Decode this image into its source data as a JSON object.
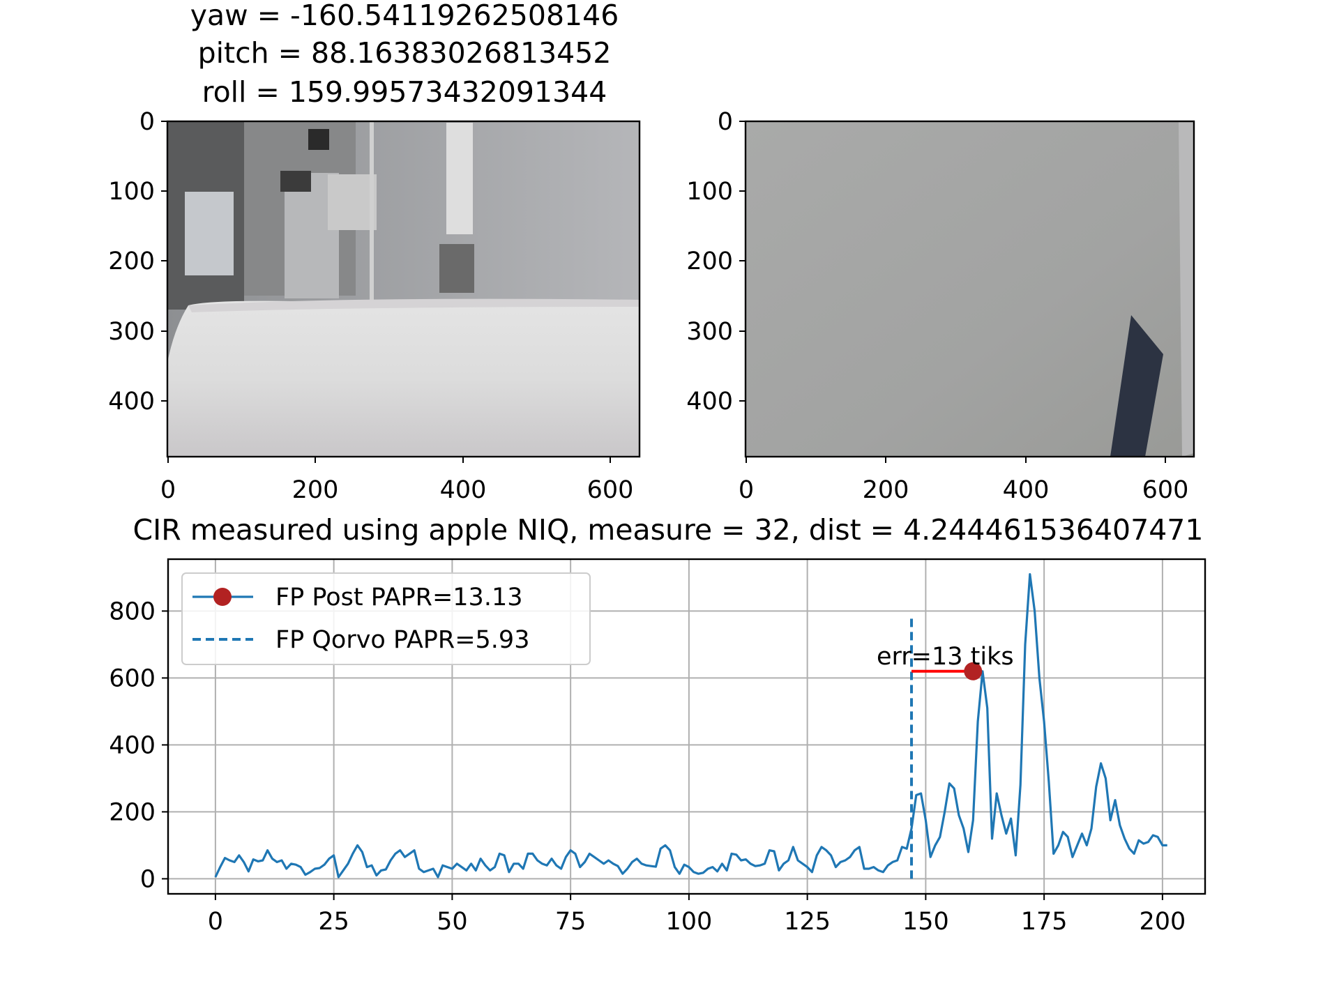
{
  "titles": {
    "yaw": "yaw = -160.54119262508146",
    "pitch": "pitch = 88.16383026813452",
    "roll": "roll = 159.99573432091344",
    "cir": "CIR measured using apple NIQ, measure = 32, dist = 4.244461536407471"
  },
  "images": [
    {
      "type": "image",
      "xticks": [
        "0",
        "200",
        "400",
        "600"
      ],
      "yticks": [
        "0",
        "100",
        "200",
        "300",
        "400"
      ],
      "xlim": [
        0,
        640
      ],
      "ylim": [
        480,
        0
      ]
    },
    {
      "type": "image",
      "xticks": [
        "0",
        "200",
        "400",
        "600"
      ],
      "yticks": [
        "0",
        "100",
        "200",
        "300",
        "400"
      ],
      "xlim": [
        0,
        640
      ],
      "ylim": [
        480,
        0
      ]
    }
  ],
  "chart_data": {
    "type": "line",
    "xlim": [
      -10,
      209
    ],
    "ylim": [
      -45,
      955
    ],
    "xticks": [
      0,
      25,
      50,
      75,
      100,
      125,
      150,
      175,
      200
    ],
    "yticks": [
      0,
      200,
      400,
      600,
      800
    ],
    "grid": true,
    "legend_position": "top-left",
    "series": [
      {
        "name": "FP Post PAPR=13.13",
        "color": "#1f77b4",
        "marker_color": "#b22222",
        "marker": {
          "x": 160,
          "y": 620
        },
        "values": [
          5,
          35,
          62,
          55,
          50,
          70,
          50,
          22,
          58,
          52,
          55,
          85,
          60,
          50,
          55,
          30,
          45,
          42,
          35,
          12,
          20,
          30,
          32,
          42,
          60,
          70,
          5,
          25,
          45,
          75,
          100,
          80,
          35,
          40,
          10,
          25,
          28,
          55,
          75,
          85,
          65,
          75,
          85,
          30,
          20,
          25,
          30,
          5,
          40,
          35,
          30,
          45,
          35,
          25,
          45,
          25,
          60,
          40,
          25,
          35,
          75,
          70,
          20,
          45,
          45,
          30,
          75,
          75,
          55,
          45,
          40,
          60,
          40,
          30,
          65,
          85,
          75,
          35,
          50,
          75,
          65,
          55,
          45,
          55,
          45,
          38,
          15,
          30,
          50,
          60,
          45,
          40,
          38,
          36,
          90,
          100,
          85,
          35,
          15,
          42,
          35,
          20,
          15,
          18,
          30,
          35,
          22,
          45,
          25,
          75,
          72,
          55,
          58,
          45,
          38,
          40,
          45,
          85,
          82,
          25,
          45,
          55,
          95,
          55,
          45,
          35,
          20,
          70,
          95,
          85,
          70,
          35,
          50,
          55,
          65,
          85,
          95,
          30,
          30,
          35,
          25,
          20,
          40,
          50,
          55,
          95,
          90,
          150,
          250,
          255,
          175,
          65,
          100,
          125,
          200,
          285,
          270,
          190,
          150,
          80,
          175,
          470,
          620,
          510,
          120,
          255,
          190,
          135,
          180,
          70,
          280,
          700,
          910,
          800,
          600,
          470,
          290,
          75,
          100,
          140,
          125,
          65,
          100,
          135,
          100,
          150,
          275,
          345,
          300,
          175,
          235,
          160,
          120,
          90,
          75,
          115,
          105,
          110,
          130,
          125,
          100,
          100
        ]
      },
      {
        "name": "FP Qorvo PAPR=5.93",
        "color": "#1f77b4",
        "style": "dashed",
        "x": 147,
        "y_range": [
          0,
          780
        ]
      }
    ],
    "annotation": {
      "text": "err=13 tiks",
      "color": "#ff0000",
      "from": {
        "x": 147,
        "y": 620
      },
      "to": {
        "x": 160,
        "y": 620
      }
    }
  }
}
